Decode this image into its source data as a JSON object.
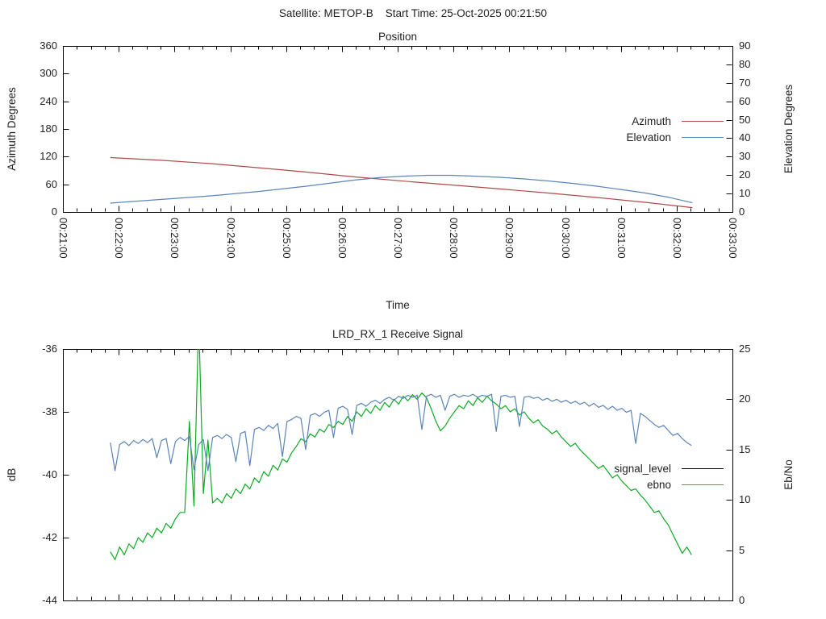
{
  "header": {
    "title": "Satellite: METOP-B    Start Time: 25-Oct-2025 00:21:50"
  },
  "colors": {
    "azimuth": "#b04a47",
    "elevation": "#5a84b8",
    "signal_level_curve": "#0cab24",
    "signal_level_legend": "#000000",
    "ebno": "#5a84b8",
    "frame": "#000000",
    "text": "#1f1f1f"
  },
  "chart_data": [
    {
      "type": "line",
      "title": "Position",
      "xlabel": "Time",
      "ylabel_left": "Azimuth Degrees",
      "ylabel_right": "Elevation Degrees",
      "x_range_seconds": [
        0,
        720
      ],
      "x_start_label": "00:21:00",
      "x_end_label": "00:33:00",
      "x_tick_labels": [
        "00:21:00",
        "00:22:00",
        "00:23:00",
        "00:24:00",
        "00:25:00",
        "00:26:00",
        "00:27:00",
        "00:28:00",
        "00:29:00",
        "00:30:00",
        "00:31:00",
        "00:32:00",
        "00:33:00"
      ],
      "y_left_range": [
        0,
        360
      ],
      "y_left_ticks": [
        0,
        60,
        120,
        180,
        240,
        300,
        360
      ],
      "y_right_range": [
        0,
        90
      ],
      "y_right_ticks": [
        0,
        10,
        20,
        30,
        40,
        50,
        60,
        70,
        80,
        90
      ],
      "grid": false,
      "legend_position": "inside-right",
      "series": [
        {
          "name": "Azimuth",
          "axis": "left",
          "color": "#b04a47",
          "t": [
            51,
            106,
            158,
            210,
            262,
            314,
            366,
            418,
            470,
            522,
            574,
            626,
            677
          ],
          "values": [
            118,
            112,
            105,
            96,
            86.5,
            76,
            67,
            58.5,
            50,
            41,
            31.5,
            21,
            9.5
          ]
        },
        {
          "name": "Elevation",
          "axis": "right",
          "color": "#5a84b8",
          "t": [
            51,
            106,
            158,
            210,
            262,
            288,
            314,
            340,
            366,
            392,
            418,
            444,
            470,
            496,
            522,
            548,
            574,
            600,
            626,
            652,
            677
          ],
          "values": [
            4.8,
            6.8,
            8.7,
            11.1,
            14.0,
            15.7,
            17.3,
            18.6,
            19.4,
            19.9,
            19.9,
            19.4,
            18.8,
            17.9,
            16.8,
            15.5,
            14.0,
            12.2,
            10.3,
            7.9,
            5.0
          ]
        }
      ]
    },
    {
      "type": "line",
      "title": "LRD_RX_1 Receive Signal",
      "xlabel": "",
      "ylabel_left": "dB",
      "ylabel_right": "Eb/No",
      "x_range_seconds": [
        0,
        720
      ],
      "x_tick_labels": [],
      "y_left_range": [
        -44,
        -36
      ],
      "y_left_ticks": [
        -44,
        -42,
        -40,
        -38,
        -36
      ],
      "y_right_range": [
        0,
        25
      ],
      "y_right_ticks": [
        0,
        5,
        10,
        15,
        20,
        25
      ],
      "grid": false,
      "legend_position": "inside-right",
      "series": [
        {
          "name": "signal_level",
          "axis": "left",
          "color": "#0cab24",
          "legend_color": "#000000",
          "t0": 51,
          "dt": 5,
          "values": [
            -42.45,
            -42.7,
            -42.3,
            -42.55,
            -42.2,
            -42.35,
            -42.0,
            -42.15,
            -41.85,
            -42.0,
            -41.7,
            -41.85,
            -41.55,
            -41.7,
            -41.4,
            -41.2,
            -41.2,
            -38.3,
            -41.0,
            -35.0,
            -40.6,
            -38.9,
            -40.9,
            -40.75,
            -40.9,
            -40.6,
            -40.75,
            -40.45,
            -40.6,
            -40.3,
            -40.45,
            -40.1,
            -40.25,
            -39.9,
            -40.05,
            -39.7,
            -39.85,
            -39.5,
            -39.6,
            -39.3,
            -39.1,
            -38.85,
            -38.95,
            -38.7,
            -38.8,
            -38.55,
            -38.65,
            -38.4,
            -38.5,
            -38.3,
            -38.4,
            -38.15,
            -38.3,
            -38.0,
            -38.15,
            -37.9,
            -38.05,
            -37.8,
            -37.95,
            -37.7,
            -37.85,
            -37.6,
            -37.75,
            -37.5,
            -37.65,
            -37.45,
            -37.6,
            -37.4,
            -37.55,
            -37.9,
            -38.3,
            -38.6,
            -38.45,
            -38.2,
            -38.0,
            -37.8,
            -37.9,
            -37.65,
            -37.8,
            -37.55,
            -37.7,
            -37.5,
            -37.65,
            -37.75,
            -37.9,
            -37.8,
            -38.0,
            -37.9,
            -38.1,
            -38.0,
            -38.2,
            -38.35,
            -38.25,
            -38.45,
            -38.55,
            -38.7,
            -38.6,
            -38.8,
            -38.95,
            -39.1,
            -39.0,
            -39.2,
            -39.35,
            -39.5,
            -39.65,
            -39.8,
            -39.7,
            -39.9,
            -40.1,
            -40.0,
            -40.2,
            -40.35,
            -40.5,
            -40.45,
            -40.65,
            -40.8,
            -41.0,
            -41.2,
            -41.15,
            -41.4,
            -41.6,
            -41.9,
            -42.2,
            -42.5,
            -42.3,
            -42.55
          ]
        },
        {
          "name": "ebno",
          "axis": "right",
          "color": "#5a84b8",
          "t0": 51,
          "dt": 5,
          "values": [
            15.7,
            12.9,
            15.5,
            15.8,
            15.4,
            15.9,
            15.6,
            16.0,
            15.7,
            16.1,
            14.2,
            15.9,
            16.1,
            13.6,
            15.8,
            16.2,
            15.9,
            16.3,
            13.0,
            15.5,
            16.0,
            12.9,
            16.2,
            16.4,
            16.1,
            16.5,
            16.2,
            13.8,
            16.6,
            16.8,
            13.4,
            17.0,
            17.2,
            16.9,
            17.4,
            17.1,
            17.6,
            14.3,
            17.8,
            18.0,
            18.3,
            18.1,
            15.0,
            18.4,
            18.6,
            18.3,
            18.7,
            18.9,
            16.2,
            19.1,
            19.3,
            19.0,
            16.5,
            19.4,
            19.6,
            19.3,
            19.7,
            19.9,
            19.6,
            20.0,
            20.2,
            19.9,
            20.3,
            20.1,
            20.4,
            20.2,
            20.4,
            17.0,
            20.3,
            20.5,
            20.2,
            20.4,
            18.9,
            20.3,
            20.5,
            20.2,
            20.4,
            20.3,
            20.5,
            20.2,
            20.4,
            20.3,
            20.5,
            16.8,
            20.3,
            20.4,
            20.2,
            20.3,
            17.3,
            20.2,
            20.3,
            20.1,
            20.2,
            19.9,
            20.1,
            19.8,
            20.0,
            19.7,
            19.9,
            19.6,
            19.8,
            19.5,
            19.7,
            19.3,
            19.6,
            19.2,
            19.4,
            19.0,
            19.3,
            18.9,
            19.1,
            18.7,
            18.9,
            15.6,
            18.6,
            18.3,
            17.9,
            17.5,
            17.2,
            17.4,
            16.9,
            16.4,
            16.6,
            16.1,
            15.7,
            15.4
          ]
        }
      ]
    }
  ]
}
